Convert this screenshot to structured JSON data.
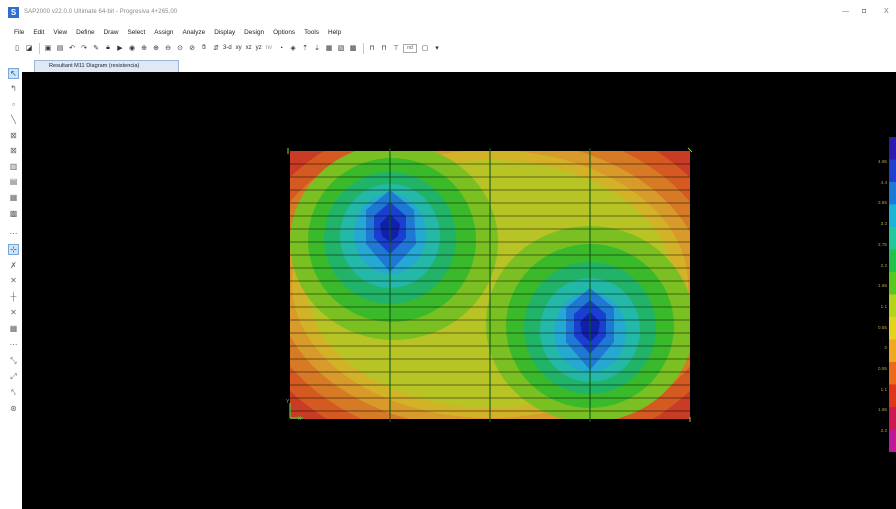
{
  "window": {
    "title": "SAP2000 v22.0.0 Ultimate 64-bit - Progresiva 4+265.00",
    "app_icon_letter": "S",
    "minimize_glyph": "—",
    "maximize_glyph": "◘",
    "close_glyph": "X"
  },
  "menu": {
    "items": [
      "File",
      "Edit",
      "View",
      "Define",
      "Draw",
      "Select",
      "Assign",
      "Analyze",
      "Display",
      "Design",
      "Options",
      "Tools",
      "Help"
    ]
  },
  "toolbar": {
    "view_3d": "3-d",
    "view_xy": "xy",
    "view_xz": "xz",
    "view_yz": "yz",
    "view_nv": "nv",
    "dropdown_nd": "nd"
  },
  "tab": {
    "label": "Resultant M11 Diagram  (resistencia)"
  },
  "axes_marker": {
    "y_label": "Y",
    "x_label": "X"
  },
  "legend": {
    "labels": [
      "4.95",
      "4.4",
      "3.85",
      "3.3",
      "2.75",
      "2.2",
      "1.65",
      "1.1",
      "0.55",
      "0",
      "0.55",
      "1.1",
      "1.65",
      "2.2"
    ],
    "colors": [
      "#2a1ab0",
      "#1e3fd0",
      "#1a7ad8",
      "#19b6d8",
      "#1fc99a",
      "#22c24a",
      "#58c81c",
      "#b4d41a",
      "#e4d21c",
      "#f0a81c",
      "#ee6a18",
      "#e23418",
      "#d01850",
      "#c01898"
    ]
  },
  "contour": {
    "grid_lines_x": 3,
    "grid_lines_y": 21,
    "color_scale": [
      "#1020a8",
      "#1a3fd0",
      "#1f79d4",
      "#25a8d2",
      "#24b8a8",
      "#21b468",
      "#3aba2a",
      "#7ac022",
      "#b8c426",
      "#d4b228",
      "#d89a2a",
      "#d67a26",
      "#d45a22",
      "#c83c26"
    ]
  }
}
